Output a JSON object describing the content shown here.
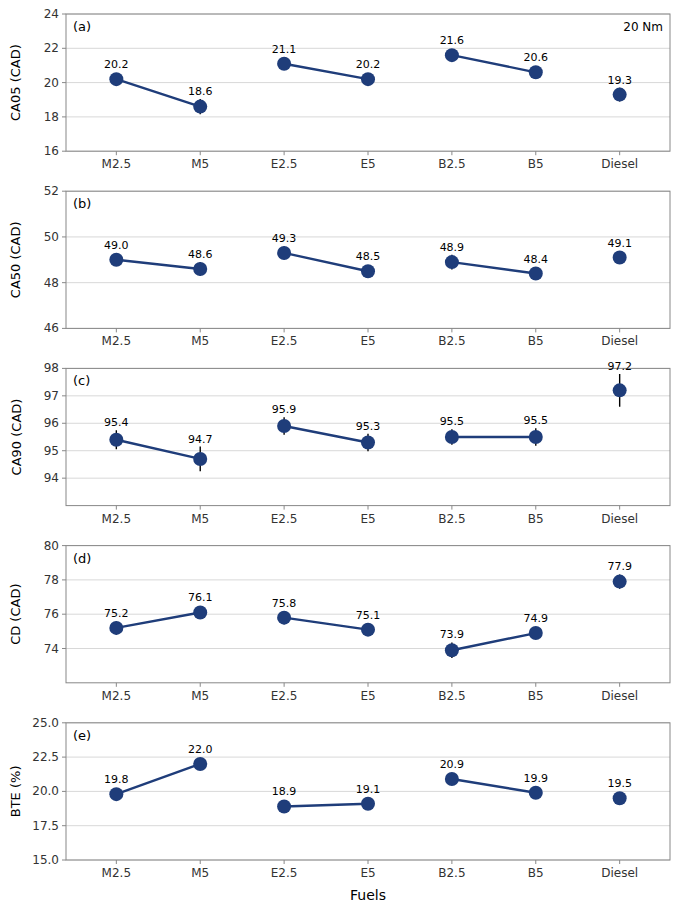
{
  "chart_data": [
    {
      "type": "line",
      "title": "(a)",
      "annotation": "20 Nm",
      "ylabel": "CA05 (CAD)",
      "categories": [
        "M2.5",
        "M5",
        "E2.5",
        "E5",
        "B2.5",
        "B5",
        "Diesel"
      ],
      "values": [
        20.2,
        18.6,
        21.1,
        20.2,
        21.6,
        20.6,
        19.3
      ],
      "errors": [
        0.35,
        0.45,
        0.35,
        0.3,
        0.35,
        0.35,
        0.4
      ],
      "ylim": [
        16,
        24
      ],
      "yticks": [
        16,
        18,
        20,
        22,
        24
      ],
      "color": "#1f3d7a",
      "marker": "circle",
      "grid": true,
      "data_labels": true
    },
    {
      "type": "line",
      "title": "(b)",
      "ylabel": "CA50 (CAD)",
      "categories": [
        "M2.5",
        "M5",
        "E2.5",
        "E5",
        "B2.5",
        "B5",
        "Diesel"
      ],
      "values": [
        49.0,
        48.6,
        49.3,
        48.5,
        48.9,
        48.4,
        49.1
      ],
      "value_labels": [
        "49.0",
        "48.6",
        "49.3",
        "48.5",
        "48.9",
        "48.4",
        "49.1"
      ],
      "errors": [
        0.22,
        0.3,
        0.28,
        0.22,
        0.32,
        0.22,
        0.28
      ],
      "ylim": [
        46,
        52
      ],
      "yticks": [
        46,
        48,
        50,
        52
      ],
      "color": "#1f3d7a",
      "marker": "circle",
      "grid": true,
      "data_labels": true
    },
    {
      "type": "line",
      "title": "(c)",
      "ylabel": "CA90 (CAD)",
      "categories": [
        "M2.5",
        "M5",
        "E2.5",
        "E5",
        "B2.5",
        "B5",
        "Diesel"
      ],
      "values": [
        95.4,
        94.7,
        95.9,
        95.3,
        95.5,
        95.5,
        97.2
      ],
      "errors": [
        0.35,
        0.45,
        0.32,
        0.32,
        0.28,
        0.32,
        0.6
      ],
      "ylim": [
        93,
        98
      ],
      "yticks": [
        94,
        95,
        96,
        97,
        98
      ],
      "color": "#1f3d7a",
      "marker": "circle",
      "grid": true,
      "data_labels": true
    },
    {
      "type": "line",
      "title": "(d)",
      "ylabel": "CD (CAD)",
      "categories": [
        "M2.5",
        "M5",
        "E2.5",
        "E5",
        "B2.5",
        "B5",
        "Diesel"
      ],
      "values": [
        75.2,
        76.1,
        75.8,
        75.1,
        73.9,
        74.9,
        77.9
      ],
      "errors": [
        0.38,
        0.38,
        0.38,
        0.32,
        0.45,
        0.32,
        0.42
      ],
      "ylim": [
        72,
        80
      ],
      "yticks": [
        74,
        76,
        78,
        80
      ],
      "color": "#1f3d7a",
      "marker": "circle",
      "grid": true,
      "data_labels": true
    },
    {
      "type": "line",
      "title": "(e)",
      "ylabel": "BTE (%)",
      "xlabel": "Fuels",
      "categories": [
        "M2.5",
        "M5",
        "E2.5",
        "E5",
        "B2.5",
        "B5",
        "Diesel"
      ],
      "values": [
        19.8,
        22.0,
        18.9,
        19.1,
        20.9,
        19.9,
        19.5
      ],
      "value_labels": [
        "19.8",
        "22.0",
        "18.9",
        "19.1",
        "20.9",
        "19.9",
        "19.5"
      ],
      "errors": [
        0.32,
        0.38,
        0.38,
        0.28,
        0.42,
        0.32,
        0.28
      ],
      "ylim": [
        15.0,
        25.0
      ],
      "yticks": [
        {
          "value": 15,
          "label": "15.0"
        },
        17.5,
        {
          "value": 20,
          "label": "20.0"
        },
        22.5,
        {
          "value": 25,
          "label": "25.0"
        }
      ],
      "color": "#1f3d7a",
      "marker": "circle",
      "grid": true,
      "data_labels": true
    }
  ]
}
